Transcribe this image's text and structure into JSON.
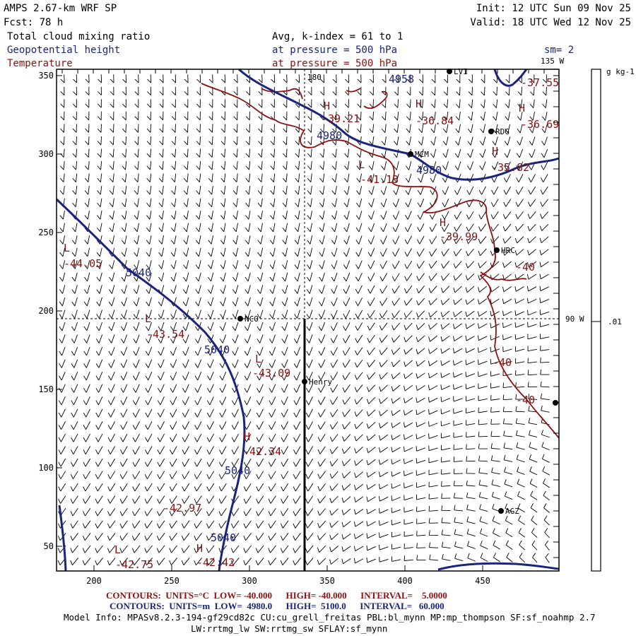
{
  "header": {
    "model": "AMPS 2.67-km WRF SP",
    "forecast": "Fcst:    78 h",
    "init": "Init: 12 UTC Sun 09 Nov 25",
    "valid": "Valid: 18 UTC Wed 12 Nov 25",
    "field1": "Total cloud mixing ratio",
    "field2": "Geopotential height",
    "field3": "Temperature",
    "avg": "Avg, k-index =  61 to   1",
    "pressure2": "at pressure =  500 hPa",
    "pressure3": "at pressure =  500 hPa",
    "smoothing": "sm= 2"
  },
  "colors": {
    "height": "#1a237e",
    "temperature": "#8b1010",
    "text": "#000000"
  },
  "map": {
    "meridian_labels": {
      "top": "180",
      "top_right": "135 W",
      "right": "90 W"
    },
    "x_ticks": [
      "200",
      "250",
      "300",
      "350",
      "400",
      "450"
    ],
    "y_ticks": [
      "350",
      "300",
      "250",
      "200",
      "150",
      "100",
      "50"
    ],
    "stations": [
      {
        "name": "NCO"
      },
      {
        "name": "Henry"
      },
      {
        "name": "MCM"
      },
      {
        "name": "RDG"
      },
      {
        "name": "HRC"
      },
      {
        "name": "AGZ"
      },
      {
        "name": "LVI"
      },
      {
        "name": ""
      }
    ],
    "temperature_labels": [
      "-37.55",
      "H",
      "-36.84",
      "H",
      "-36.69",
      "H",
      "-39.21",
      "H",
      "-35.82",
      "L",
      "-41.13",
      "H",
      "-39.99",
      "L",
      "-44.05",
      "-40",
      "L",
      "-43.54",
      "L",
      "-43.09",
      "-40",
      "-40",
      "H",
      "-42.34",
      "-42.97",
      "L",
      "-42.75",
      "H",
      "-42.42"
    ],
    "height_labels": [
      "4958",
      "4980",
      "4980",
      "5040",
      "5040",
      "5040",
      "5040"
    ]
  },
  "colorbar": {
    "units": "g kg-1",
    "tick_label": ".01"
  },
  "footer": {
    "temp_contours": "CONTOURS:  UNITS=°C  LOW= -40.000      HIGH= -40.000      INTERVAL=    5.0000",
    "height_contours": "CONTOURS:  UNITS=m  LOW=  4980.0      HIGH=  5100.0      INTERVAL=   60.000",
    "model_info": "Model Info: MPASv8.2.3-194-gf29cd82c CU:cu_grell_freitas PBL:bl_mynn MP:mp_thompson SF:sf_noahmp 2.7",
    "model_info2": "LW:rrtmg_lw SW:rrtmg_sw SFLAY:sf_mynn"
  }
}
